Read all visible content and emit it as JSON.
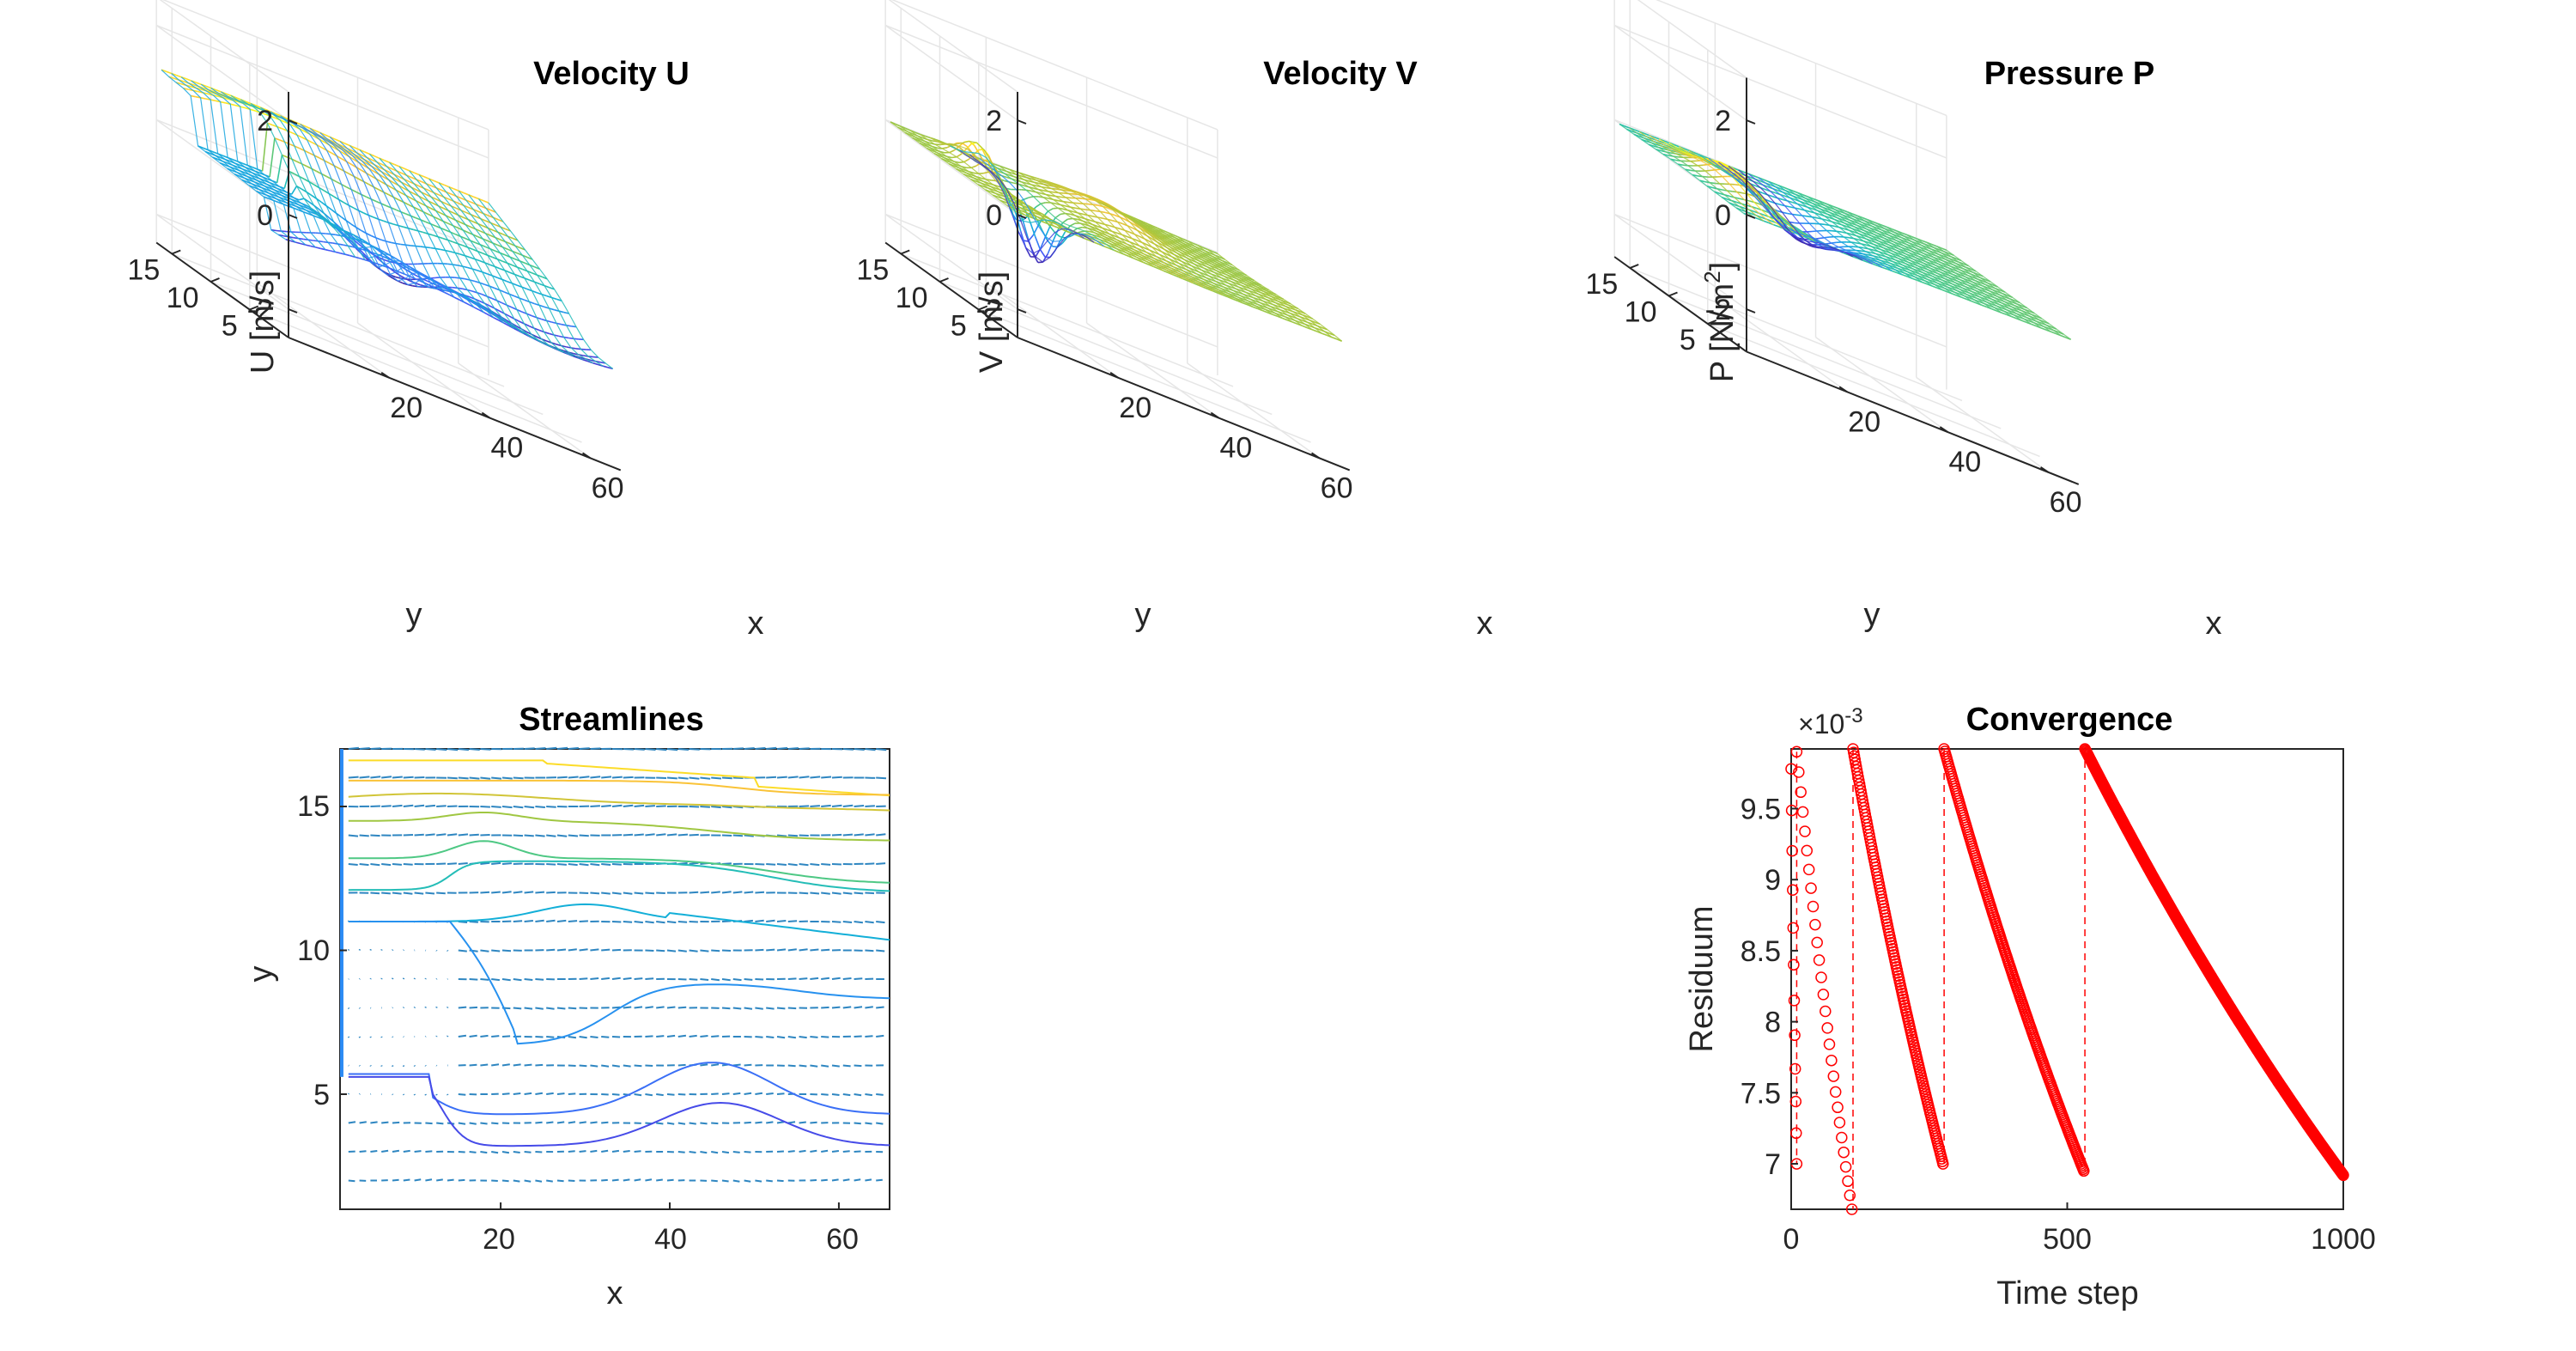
{
  "chart_data": [
    {
      "type": "surface",
      "title": "Velocity U",
      "xlabel": "x",
      "ylabel": "y",
      "zlabel": "U [m/s]",
      "xticks": [
        "20",
        "40",
        "60"
      ],
      "yticks": [
        "5",
        "10",
        "15"
      ],
      "zticks": [
        "-2",
        "0",
        "2"
      ],
      "xlim": [
        1,
        66
      ],
      "ylim": [
        1,
        17
      ],
      "zlim": [
        -2.6,
        2.6
      ],
      "grid": true
    },
    {
      "type": "surface",
      "title": "Velocity V",
      "xlabel": "x",
      "ylabel": "y",
      "zlabel": "V [m/s]",
      "xticks": [
        "20",
        "40",
        "60"
      ],
      "yticks": [
        "5",
        "10",
        "15"
      ],
      "zticks": [
        "-2",
        "0",
        "2"
      ],
      "xlim": [
        1,
        66
      ],
      "ylim": [
        1,
        17
      ],
      "zlim": [
        -2.6,
        2.6
      ],
      "grid": true
    },
    {
      "type": "surface",
      "title": "Pressure P",
      "xlabel": "x",
      "ylabel": "y",
      "zlabel_parts": [
        "P [N/m",
        "2",
        "]"
      ],
      "xticks": [
        "20",
        "40",
        "60"
      ],
      "yticks": [
        "5",
        "10",
        "15"
      ],
      "zticks": [
        "-2",
        "0",
        "2"
      ],
      "xlim": [
        1,
        66
      ],
      "ylim": [
        1,
        17
      ],
      "zlim": [
        -2.9,
        2.9
      ],
      "grid": true
    },
    {
      "type": "streamlines",
      "title": "Streamlines",
      "xlabel": "x",
      "ylabel": "y",
      "xticks": [
        "20",
        "40",
        "60"
      ],
      "yticks": [
        "5",
        "10",
        "15"
      ],
      "xlim": [
        1,
        66
      ],
      "ylim": [
        1,
        17
      ],
      "grid": false
    },
    {
      "type": "scatter",
      "title": "Convergence",
      "xlabel": "Time step",
      "ylabel": "Residuum",
      "exponent_parts": [
        "×10",
        "-3"
      ],
      "xticks": [
        "0",
        "500",
        "1000"
      ],
      "yticks": [
        "7",
        "7.5",
        "8",
        "8.5",
        "9",
        "9.5"
      ],
      "xlim": [
        0,
        1000
      ],
      "ylim": [
        6.68,
        9.92
      ],
      "y_unit_scale": "1e-3",
      "restarts": [
        0,
        10,
        110,
        275,
        530
      ],
      "segments": [
        {
          "x_start": 0,
          "x_end": 10,
          "y_start": 9.78,
          "y_end": 7.0,
          "marker_count": 12
        },
        {
          "x_start": 10,
          "x_end": 110,
          "y_start": 9.9,
          "y_end": 6.68,
          "marker_count": 28
        },
        {
          "x_start": 112,
          "x_end": 275,
          "y_start": 9.92,
          "y_end": 7.0,
          "marker_count": 140
        },
        {
          "x_start": 277,
          "x_end": 530,
          "y_start": 9.92,
          "y_end": 6.95,
          "marker_count": 200
        },
        {
          "x_start": 532,
          "x_end": 1000,
          "y_start": 9.92,
          "y_end": 6.92,
          "marker_count": 430
        }
      ],
      "marker": "circle",
      "color": "#ff0000",
      "grid": false
    }
  ]
}
